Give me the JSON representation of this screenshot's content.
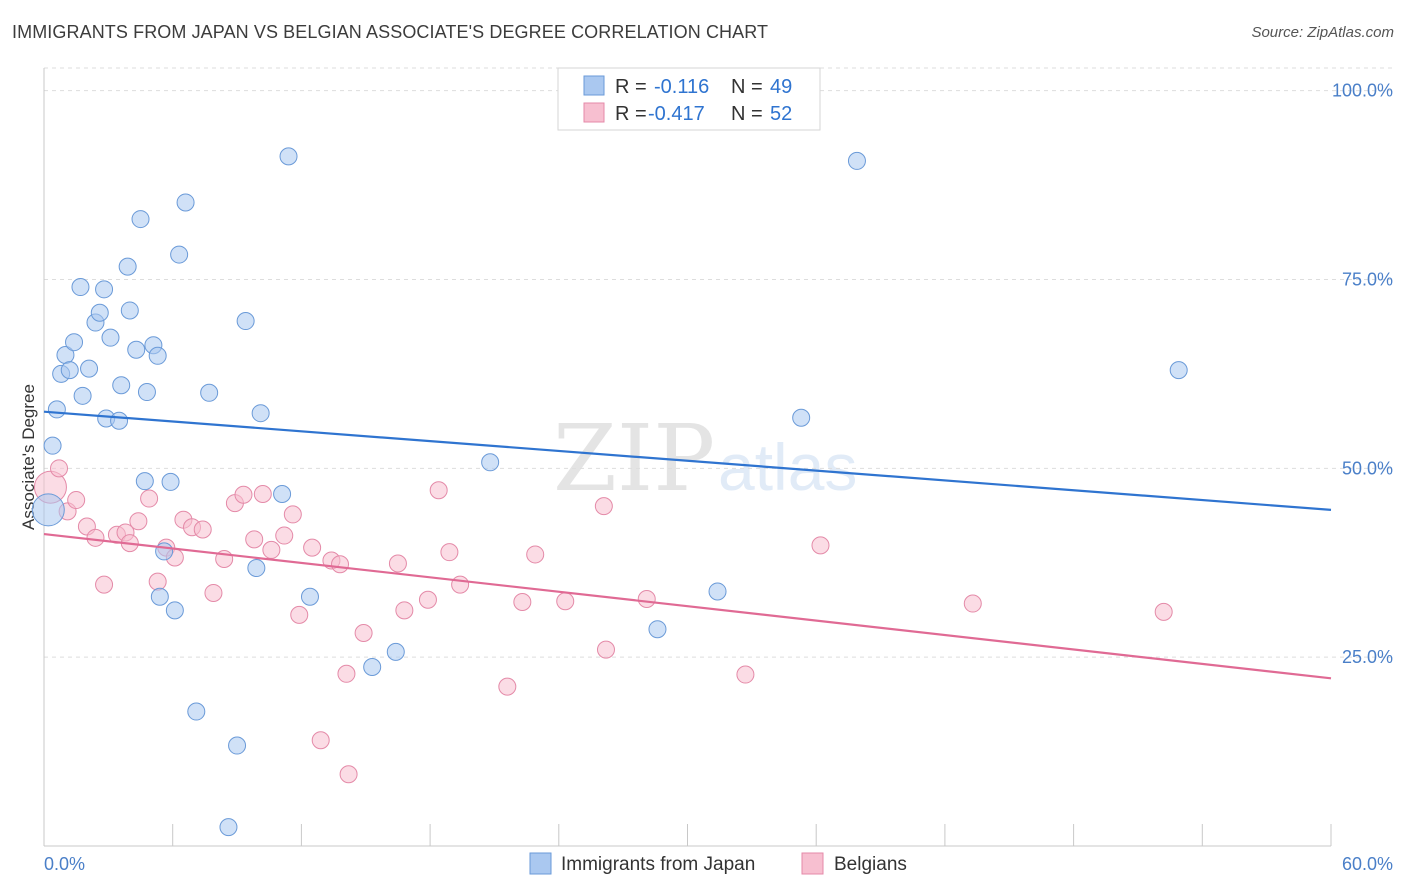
{
  "header": {
    "title": "IMMIGRANTS FROM JAPAN VS BELGIAN ASSOCIATE'S DEGREE CORRELATION CHART",
    "source": "Source: ZipAtlas.com"
  },
  "watermark": {
    "zip": "ZIP",
    "atlas": "atlas"
  },
  "colors": {
    "blue_fill": "#aac8f0",
    "blue_stroke": "#6a9ad8",
    "blue_line": "#2f74d0",
    "pink_fill": "#f7bfd0",
    "pink_stroke": "#e48aa8",
    "pink_line": "#e06a94",
    "tick_text": "#4a7fc8",
    "grid": "#dddddd"
  },
  "legend": {
    "rows": [
      {
        "r_label": "R =",
        "r_value": "-0.116",
        "n_label": "N =",
        "n_value": "49"
      },
      {
        "r_label": "R =",
        "r_value": "-0.417",
        "n_label": "N =",
        "n_value": "52"
      }
    ]
  },
  "chart_data": {
    "type": "scatter",
    "ylabel": "Associate's Degree",
    "xlim": [
      0,
      60
    ],
    "ylim": [
      0,
      103
    ],
    "x_tick_labels": [
      "0.0%",
      "60.0%"
    ],
    "y_ticks": [
      25,
      50,
      75,
      100
    ],
    "y_tick_labels": [
      "25.0%",
      "50.0%",
      "75.0%",
      "100.0%"
    ],
    "grid": "horizontal dashed",
    "legend_position": "top-center",
    "series": [
      {
        "name": "Immigrants from Japan",
        "color": "#aac8f0",
        "trend": {
          "x": [
            0,
            60
          ],
          "y": [
            57.5,
            44.5
          ]
        },
        "points": [
          [
            0.2,
            44.5
          ],
          [
            0.4,
            53
          ],
          [
            0.6,
            57.8
          ],
          [
            0.8,
            62.5
          ],
          [
            1.0,
            65
          ],
          [
            1.2,
            63
          ],
          [
            1.4,
            66.7
          ],
          [
            1.8,
            59.6
          ],
          [
            1.7,
            74
          ],
          [
            2.1,
            63.2
          ],
          [
            2.4,
            69.3
          ],
          [
            2.6,
            70.6
          ],
          [
            2.8,
            73.7
          ],
          [
            2.9,
            56.6
          ],
          [
            3.1,
            67.3
          ],
          [
            3.5,
            56.3
          ],
          [
            3.6,
            61
          ],
          [
            3.9,
            76.7
          ],
          [
            4.0,
            70.9
          ],
          [
            4.3,
            65.7
          ],
          [
            4.5,
            83
          ],
          [
            4.7,
            48.3
          ],
          [
            4.8,
            60.1
          ],
          [
            5.1,
            66.3
          ],
          [
            5.3,
            64.9
          ],
          [
            5.6,
            39
          ],
          [
            5.4,
            33
          ],
          [
            5.9,
            48.2
          ],
          [
            6.1,
            31.2
          ],
          [
            6.3,
            78.3
          ],
          [
            6.6,
            85.2
          ],
          [
            7.1,
            17.8
          ],
          [
            7.7,
            60
          ],
          [
            8.6,
            2.5
          ],
          [
            9.0,
            13.3
          ],
          [
            9.4,
            69.5
          ],
          [
            9.9,
            36.8
          ],
          [
            10.1,
            57.3
          ],
          [
            11.1,
            46.6
          ],
          [
            11.4,
            91.3
          ],
          [
            12.4,
            33
          ],
          [
            15.3,
            23.7
          ],
          [
            16.4,
            25.7
          ],
          [
            20.8,
            50.8
          ],
          [
            28.6,
            28.7
          ],
          [
            31.4,
            33.7
          ],
          [
            35.3,
            56.7
          ],
          [
            37.9,
            90.7
          ],
          [
            52.9,
            63
          ]
        ]
      },
      {
        "name": "Belgians",
        "color": "#f7bfd0",
        "trend": {
          "x": [
            0,
            60
          ],
          "y": [
            41.3,
            22.2
          ]
        },
        "points": [
          [
            0.3,
            47.5
          ],
          [
            0.7,
            50
          ],
          [
            1.1,
            44.3
          ],
          [
            1.5,
            45.8
          ],
          [
            2.0,
            42.3
          ],
          [
            2.4,
            40.8
          ],
          [
            2.8,
            34.6
          ],
          [
            3.4,
            41.2
          ],
          [
            3.8,
            41.5
          ],
          [
            4.0,
            40.1
          ],
          [
            4.4,
            43
          ],
          [
            4.9,
            46
          ],
          [
            5.3,
            35
          ],
          [
            5.7,
            39.5
          ],
          [
            6.1,
            38.2
          ],
          [
            6.5,
            43.2
          ],
          [
            6.9,
            42.2
          ],
          [
            7.4,
            41.9
          ],
          [
            7.9,
            33.5
          ],
          [
            8.4,
            38
          ],
          [
            8.9,
            45.4
          ],
          [
            9.3,
            46.5
          ],
          [
            9.8,
            40.6
          ],
          [
            10.2,
            46.6
          ],
          [
            10.6,
            39.2
          ],
          [
            11.2,
            41.1
          ],
          [
            11.6,
            43.9
          ],
          [
            11.9,
            30.6
          ],
          [
            12.5,
            39.5
          ],
          [
            12.9,
            14
          ],
          [
            13.4,
            37.8
          ],
          [
            13.8,
            37.3
          ],
          [
            14.1,
            22.8
          ],
          [
            14.2,
            9.5
          ],
          [
            14.9,
            28.2
          ],
          [
            16.5,
            37.4
          ],
          [
            16.8,
            31.2
          ],
          [
            17.9,
            32.6
          ],
          [
            18.4,
            47.1
          ],
          [
            18.9,
            38.9
          ],
          [
            19.4,
            34.6
          ],
          [
            21.6,
            21.1
          ],
          [
            22.3,
            32.3
          ],
          [
            22.9,
            38.6
          ],
          [
            24.3,
            32.4
          ],
          [
            26.2,
            26
          ],
          [
            26.1,
            45
          ],
          [
            28.1,
            32.7
          ],
          [
            32.7,
            22.7
          ],
          [
            36.2,
            39.8
          ],
          [
            43.3,
            32.1
          ],
          [
            52.2,
            31
          ]
        ]
      }
    ]
  },
  "bottom_legend": {
    "items": [
      "Immigrants from Japan",
      "Belgians"
    ]
  }
}
